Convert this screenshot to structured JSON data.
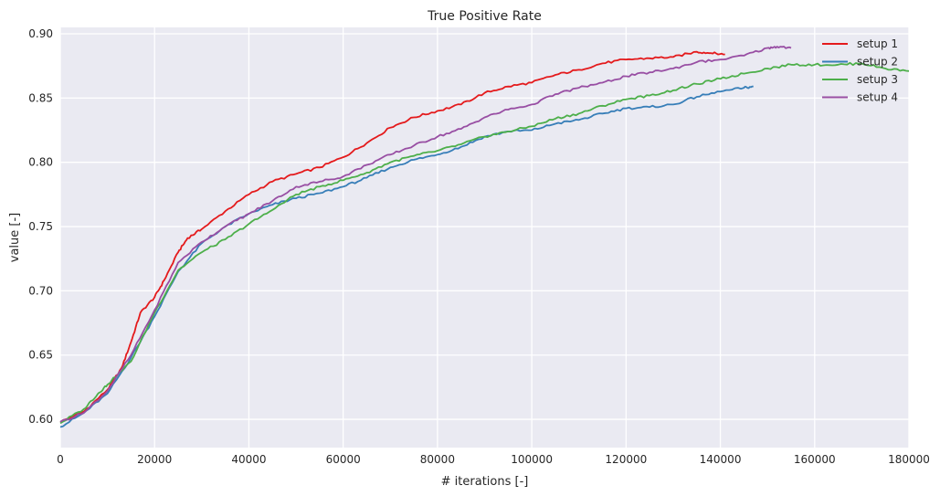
{
  "chart_data": {
    "type": "line",
    "title": "True Positive Rate",
    "xlabel": "# iterations [-]",
    "ylabel": "value [-]",
    "xlim": [
      0,
      180000
    ],
    "ylim": [
      0.578,
      0.905
    ],
    "xticks": [
      0,
      20000,
      40000,
      60000,
      80000,
      100000,
      120000,
      140000,
      160000,
      180000
    ],
    "yticks": [
      0.6,
      0.65,
      0.7,
      0.75,
      0.8,
      0.85,
      0.9
    ],
    "xtick_labels": [
      "0",
      "20000",
      "40000",
      "60000",
      "80000",
      "100000",
      "120000",
      "140000",
      "160000",
      "180000"
    ],
    "ytick_labels": [
      "0.60",
      "0.65",
      "0.70",
      "0.75",
      "0.80",
      "0.85",
      "0.90"
    ],
    "grid": true,
    "legend_position": "top-right",
    "series": [
      {
        "name": "setup 1",
        "color": "#e41a1c",
        "points": [
          [
            0,
            0.598
          ],
          [
            5000,
            0.606
          ],
          [
            10000,
            0.623
          ],
          [
            13000,
            0.64
          ],
          [
            15000,
            0.66
          ],
          [
            17000,
            0.683
          ],
          [
            20000,
            0.695
          ],
          [
            22000,
            0.708
          ],
          [
            25000,
            0.73
          ],
          [
            27000,
            0.741
          ],
          [
            30000,
            0.748
          ],
          [
            35000,
            0.762
          ],
          [
            40000,
            0.775
          ],
          [
            45000,
            0.785
          ],
          [
            50000,
            0.791
          ],
          [
            55000,
            0.796
          ],
          [
            60000,
            0.804
          ],
          [
            65000,
            0.815
          ],
          [
            70000,
            0.827
          ],
          [
            75000,
            0.835
          ],
          [
            80000,
            0.84
          ],
          [
            85000,
            0.845
          ],
          [
            90000,
            0.854
          ],
          [
            95000,
            0.859
          ],
          [
            100000,
            0.862
          ],
          [
            105000,
            0.868
          ],
          [
            110000,
            0.872
          ],
          [
            115000,
            0.877
          ],
          [
            120000,
            0.88
          ],
          [
            125000,
            0.881
          ],
          [
            130000,
            0.882
          ],
          [
            135000,
            0.886
          ],
          [
            138000,
            0.885
          ],
          [
            141000,
            0.884
          ]
        ]
      },
      {
        "name": "setup 2",
        "color": "#377eb8",
        "points": [
          [
            0,
            0.594
          ],
          [
            5000,
            0.605
          ],
          [
            10000,
            0.62
          ],
          [
            15000,
            0.648
          ],
          [
            20000,
            0.68
          ],
          [
            25000,
            0.715
          ],
          [
            30000,
            0.737
          ],
          [
            35000,
            0.75
          ],
          [
            40000,
            0.76
          ],
          [
            45000,
            0.767
          ],
          [
            50000,
            0.772
          ],
          [
            55000,
            0.776
          ],
          [
            60000,
            0.781
          ],
          [
            65000,
            0.788
          ],
          [
            70000,
            0.796
          ],
          [
            75000,
            0.802
          ],
          [
            80000,
            0.806
          ],
          [
            85000,
            0.812
          ],
          [
            90000,
            0.82
          ],
          [
            95000,
            0.824
          ],
          [
            100000,
            0.825
          ],
          [
            105000,
            0.83
          ],
          [
            110000,
            0.833
          ],
          [
            115000,
            0.838
          ],
          [
            120000,
            0.842
          ],
          [
            125000,
            0.843
          ],
          [
            130000,
            0.845
          ],
          [
            135000,
            0.851
          ],
          [
            140000,
            0.855
          ],
          [
            145000,
            0.858
          ],
          [
            147000,
            0.859
          ]
        ]
      },
      {
        "name": "setup 3",
        "color": "#4daf4a",
        "points": [
          [
            0,
            0.597
          ],
          [
            5000,
            0.608
          ],
          [
            8000,
            0.62
          ],
          [
            10000,
            0.627
          ],
          [
            15000,
            0.645
          ],
          [
            20000,
            0.683
          ],
          [
            25000,
            0.716
          ],
          [
            30000,
            0.73
          ],
          [
            35000,
            0.74
          ],
          [
            40000,
            0.752
          ],
          [
            45000,
            0.763
          ],
          [
            50000,
            0.775
          ],
          [
            55000,
            0.781
          ],
          [
            60000,
            0.786
          ],
          [
            65000,
            0.792
          ],
          [
            70000,
            0.8
          ],
          [
            75000,
            0.805
          ],
          [
            80000,
            0.809
          ],
          [
            85000,
            0.814
          ],
          [
            90000,
            0.82
          ],
          [
            95000,
            0.824
          ],
          [
            100000,
            0.828
          ],
          [
            105000,
            0.834
          ],
          [
            110000,
            0.838
          ],
          [
            115000,
            0.844
          ],
          [
            120000,
            0.849
          ],
          [
            125000,
            0.852
          ],
          [
            130000,
            0.856
          ],
          [
            135000,
            0.861
          ],
          [
            140000,
            0.865
          ],
          [
            145000,
            0.869
          ],
          [
            150000,
            0.873
          ],
          [
            155000,
            0.876
          ],
          [
            160000,
            0.876
          ],
          [
            165000,
            0.876
          ],
          [
            170000,
            0.877
          ],
          [
            175000,
            0.873
          ],
          [
            180000,
            0.871
          ]
        ]
      },
      {
        "name": "setup 4",
        "color": "#984ea3",
        "points": [
          [
            0,
            0.598
          ],
          [
            5000,
            0.605
          ],
          [
            10000,
            0.622
          ],
          [
            15000,
            0.65
          ],
          [
            20000,
            0.685
          ],
          [
            25000,
            0.722
          ],
          [
            30000,
            0.738
          ],
          [
            35000,
            0.75
          ],
          [
            40000,
            0.76
          ],
          [
            45000,
            0.77
          ],
          [
            50000,
            0.781
          ],
          [
            55000,
            0.785
          ],
          [
            60000,
            0.789
          ],
          [
            65000,
            0.798
          ],
          [
            70000,
            0.806
          ],
          [
            75000,
            0.813
          ],
          [
            80000,
            0.82
          ],
          [
            85000,
            0.826
          ],
          [
            90000,
            0.835
          ],
          [
            95000,
            0.841
          ],
          [
            100000,
            0.845
          ],
          [
            105000,
            0.853
          ],
          [
            110000,
            0.858
          ],
          [
            115000,
            0.862
          ],
          [
            120000,
            0.867
          ],
          [
            125000,
            0.87
          ],
          [
            130000,
            0.873
          ],
          [
            135000,
            0.878
          ],
          [
            140000,
            0.88
          ],
          [
            145000,
            0.883
          ],
          [
            150000,
            0.889
          ],
          [
            152000,
            0.89
          ],
          [
            155000,
            0.889
          ]
        ]
      }
    ]
  }
}
